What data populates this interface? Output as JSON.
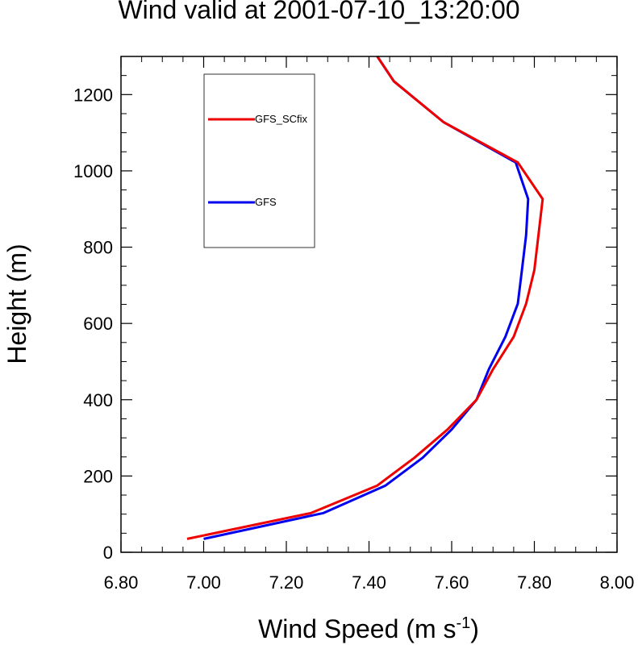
{
  "chart_data": {
    "type": "line",
    "title": "Wind valid at 2001-07-10_13:20:00",
    "xlabel": "Wind Speed (m s",
    "xlabel_sup": "-1",
    "xlabel_close": ")",
    "ylabel": "Height (m)",
    "xlim": [
      6.8,
      8.0
    ],
    "ylim": [
      0,
      1300
    ],
    "x_ticks": [
      6.8,
      7.0,
      7.2,
      7.4,
      7.6,
      7.8,
      8.0
    ],
    "x_tick_labels": [
      "6.80",
      "7.00",
      "7.20",
      "7.40",
      "7.60",
      "7.80",
      "8.00"
    ],
    "y_ticks": [
      0,
      200,
      400,
      600,
      800,
      1000,
      1200
    ],
    "y_tick_labels": [
      "0",
      "200",
      "400",
      "600",
      "800",
      "1000",
      "1200"
    ],
    "grid": false,
    "legend_position": "top-left",
    "series": [
      {
        "name": "GFS_SCfix",
        "color": "#ee0000",
        "points": [
          [
            6.96,
            35
          ],
          [
            7.26,
            103
          ],
          [
            7.42,
            175
          ],
          [
            7.51,
            248
          ],
          [
            7.59,
            322
          ],
          [
            7.66,
            400
          ],
          [
            7.7,
            480
          ],
          [
            7.75,
            565
          ],
          [
            7.78,
            652
          ],
          [
            7.8,
            740
          ],
          [
            7.81,
            832
          ],
          [
            7.82,
            926
          ],
          [
            7.76,
            1022
          ],
          [
            7.58,
            1128
          ],
          [
            7.46,
            1235
          ],
          [
            7.42,
            1300
          ]
        ]
      },
      {
        "name": "GFS",
        "color": "#0000ee",
        "points": [
          [
            7.0,
            35
          ],
          [
            7.29,
            103
          ],
          [
            7.44,
            175
          ],
          [
            7.53,
            248
          ],
          [
            7.6,
            322
          ],
          [
            7.66,
            400
          ],
          [
            7.69,
            480
          ],
          [
            7.73,
            565
          ],
          [
            7.76,
            652
          ],
          [
            7.77,
            740
          ],
          [
            7.78,
            832
          ],
          [
            7.785,
            926
          ],
          [
            7.755,
            1022
          ],
          [
            7.58,
            1128
          ],
          [
            7.46,
            1235
          ],
          [
            7.42,
            1300
          ]
        ]
      }
    ]
  }
}
